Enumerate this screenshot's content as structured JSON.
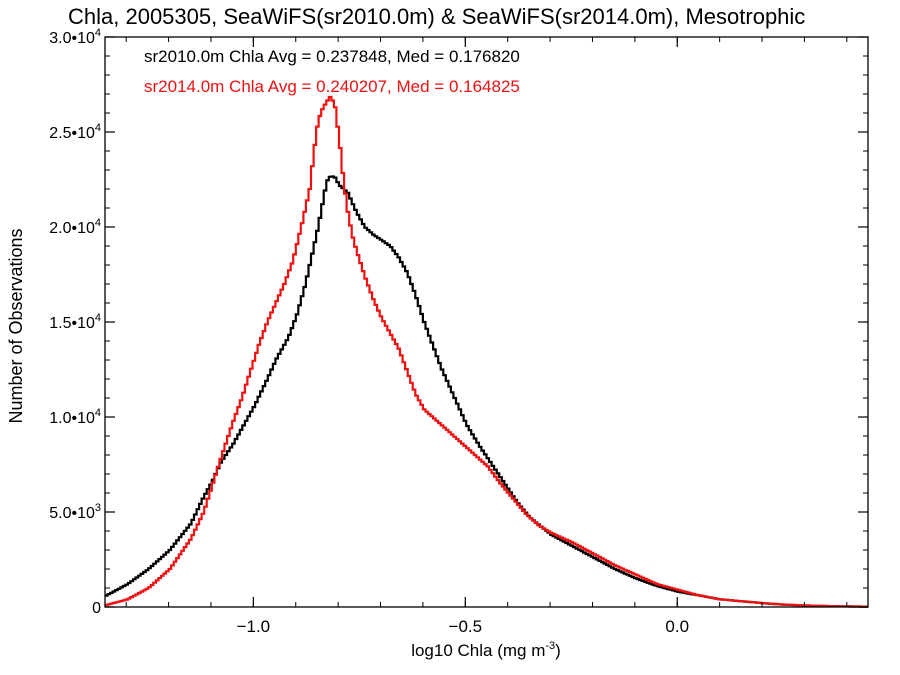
{
  "chart_data": {
    "type": "line",
    "title": "Chla, 2005305, SeaWiFS(sr2010.0m) & SeaWiFS(sr2014.0m), Mesotrophic",
    "xlabel_main": "log10 Chla (mg m",
    "xlabel_sup": "-3",
    "xlabel_tail": ")",
    "ylabel": "Number of Observations",
    "xlim": [
      -1.35,
      0.45
    ],
    "ylim": [
      0,
      30000
    ],
    "x_ticks": [
      {
        "value": -1.0,
        "label": "−1.0"
      },
      {
        "value": -0.5,
        "label": "−0.5"
      },
      {
        "value": 0.0,
        "label": "0.0"
      }
    ],
    "y_ticks": [
      {
        "value": 0,
        "mant": "0",
        "exp": ""
      },
      {
        "value": 5000,
        "mant": "5.0•10",
        "exp": "3"
      },
      {
        "value": 10000,
        "mant": "1.0•10",
        "exp": "4"
      },
      {
        "value": 15000,
        "mant": "1.5•10",
        "exp": "4"
      },
      {
        "value": 20000,
        "mant": "2.0•10",
        "exp": "4"
      },
      {
        "value": 25000,
        "mant": "2.5•10",
        "exp": "4"
      },
      {
        "value": 30000,
        "mant": "3.0•10",
        "exp": "4"
      }
    ],
    "annotations": [
      {
        "text": "sr2010.0m Chla Avg = 0.237848, Med = 0.176820",
        "color": "#000000"
      },
      {
        "text": "sr2014.0m Chla Avg = 0.240207, Med = 0.164825",
        "color": "#ee1111"
      }
    ],
    "series": [
      {
        "color": "#000000",
        "points": [
          [
            -1.35,
            600
          ],
          [
            -1.3,
            1200
          ],
          [
            -1.25,
            2000
          ],
          [
            -1.2,
            3000
          ],
          [
            -1.15,
            4400
          ],
          [
            -1.12,
            5800
          ],
          [
            -1.1,
            6600
          ],
          [
            -1.08,
            7600
          ],
          [
            -1.05,
            8600
          ],
          [
            -1.02,
            9800
          ],
          [
            -1.0,
            10600
          ],
          [
            -0.97,
            12000
          ],
          [
            -0.95,
            13000
          ],
          [
            -0.92,
            14200
          ],
          [
            -0.9,
            15400
          ],
          [
            -0.88,
            17000
          ],
          [
            -0.86,
            19000
          ],
          [
            -0.85,
            20000
          ],
          [
            -0.84,
            21200
          ],
          [
            -0.83,
            22400
          ],
          [
            -0.82,
            22700
          ],
          [
            -0.81,
            22600
          ],
          [
            -0.8,
            22200
          ],
          [
            -0.78,
            21800
          ],
          [
            -0.76,
            20800
          ],
          [
            -0.74,
            20000
          ],
          [
            -0.72,
            19600
          ],
          [
            -0.7,
            19300
          ],
          [
            -0.68,
            19000
          ],
          [
            -0.66,
            18400
          ],
          [
            -0.64,
            17600
          ],
          [
            -0.62,
            16400
          ],
          [
            -0.6,
            15000
          ],
          [
            -0.58,
            13800
          ],
          [
            -0.56,
            12600
          ],
          [
            -0.54,
            11600
          ],
          [
            -0.52,
            10600
          ],
          [
            -0.5,
            9600
          ],
          [
            -0.47,
            8500
          ],
          [
            -0.44,
            7500
          ],
          [
            -0.41,
            6500
          ],
          [
            -0.38,
            5500
          ],
          [
            -0.35,
            4700
          ],
          [
            -0.3,
            3800
          ],
          [
            -0.25,
            3200
          ],
          [
            -0.2,
            2600
          ],
          [
            -0.15,
            2000
          ],
          [
            -0.1,
            1500
          ],
          [
            -0.05,
            1100
          ],
          [
            0.0,
            800
          ],
          [
            0.05,
            600
          ],
          [
            0.1,
            400
          ],
          [
            0.15,
            300
          ],
          [
            0.2,
            200
          ],
          [
            0.25,
            120
          ],
          [
            0.3,
            80
          ],
          [
            0.35,
            50
          ],
          [
            0.4,
            30
          ],
          [
            0.45,
            20
          ]
        ]
      },
      {
        "color": "#ee1111",
        "points": [
          [
            -1.35,
            100
          ],
          [
            -1.3,
            400
          ],
          [
            -1.25,
            1000
          ],
          [
            -1.2,
            2000
          ],
          [
            -1.15,
            3600
          ],
          [
            -1.12,
            5000
          ],
          [
            -1.1,
            6400
          ],
          [
            -1.08,
            7800
          ],
          [
            -1.05,
            9800
          ],
          [
            -1.03,
            11000
          ],
          [
            -1.01,
            12400
          ],
          [
            -0.99,
            13800
          ],
          [
            -0.97,
            15000
          ],
          [
            -0.95,
            16000
          ],
          [
            -0.93,
            17000
          ],
          [
            -0.91,
            18200
          ],
          [
            -0.89,
            20000
          ],
          [
            -0.87,
            22000
          ],
          [
            -0.86,
            24000
          ],
          [
            -0.85,
            25600
          ],
          [
            -0.84,
            26200
          ],
          [
            -0.83,
            26600
          ],
          [
            -0.82,
            26900
          ],
          [
            -0.81,
            26300
          ],
          [
            -0.8,
            24600
          ],
          [
            -0.79,
            22400
          ],
          [
            -0.78,
            20800
          ],
          [
            -0.77,
            19600
          ],
          [
            -0.76,
            18800
          ],
          [
            -0.74,
            17400
          ],
          [
            -0.72,
            16200
          ],
          [
            -0.7,
            15200
          ],
          [
            -0.68,
            14400
          ],
          [
            -0.66,
            13600
          ],
          [
            -0.64,
            12400
          ],
          [
            -0.62,
            11200
          ],
          [
            -0.6,
            10400
          ],
          [
            -0.57,
            9800
          ],
          [
            -0.54,
            9200
          ],
          [
            -0.51,
            8600
          ],
          [
            -0.48,
            8000
          ],
          [
            -0.45,
            7400
          ],
          [
            -0.42,
            6500
          ],
          [
            -0.39,
            5700
          ],
          [
            -0.36,
            4900
          ],
          [
            -0.33,
            4300
          ],
          [
            -0.3,
            3900
          ],
          [
            -0.25,
            3400
          ],
          [
            -0.2,
            2800
          ],
          [
            -0.15,
            2200
          ],
          [
            -0.1,
            1700
          ],
          [
            -0.05,
            1200
          ],
          [
            0.0,
            900
          ],
          [
            0.05,
            600
          ],
          [
            0.1,
            400
          ],
          [
            0.15,
            300
          ],
          [
            0.2,
            200
          ],
          [
            0.25,
            130
          ],
          [
            0.3,
            80
          ],
          [
            0.35,
            50
          ],
          [
            0.4,
            30
          ],
          [
            0.45,
            20
          ]
        ]
      }
    ],
    "grid": false,
    "legend": "none"
  }
}
